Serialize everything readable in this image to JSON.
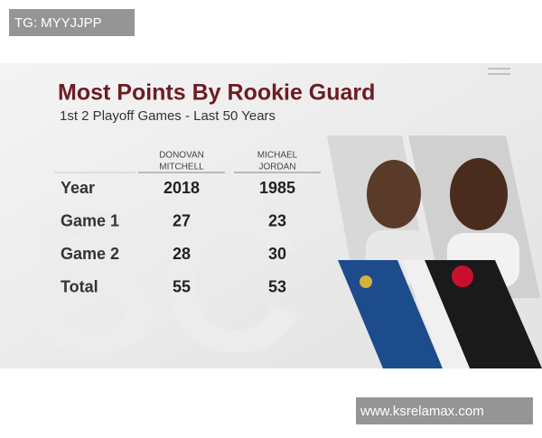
{
  "watermark": {
    "top": "TG: MYYJJPP",
    "bottom": "www.ksrelamax.com"
  },
  "header": {
    "title": "Most Points By Rookie Guard",
    "subtitle": "1st 2 Playoff Games - Last 50 Years"
  },
  "table": {
    "columns": [
      [
        "DONOVAN",
        "MITCHELL"
      ],
      [
        "MICHAEL",
        "JORDAN"
      ]
    ],
    "rows": [
      {
        "label": "Year",
        "values": [
          2018,
          1985
        ]
      },
      {
        "label": "Game 1",
        "values": [
          27,
          23
        ]
      },
      {
        "label": "Game 2",
        "values": [
          28,
          30
        ]
      },
      {
        "label": "Total",
        "values": [
          55,
          53
        ]
      }
    ]
  }
}
